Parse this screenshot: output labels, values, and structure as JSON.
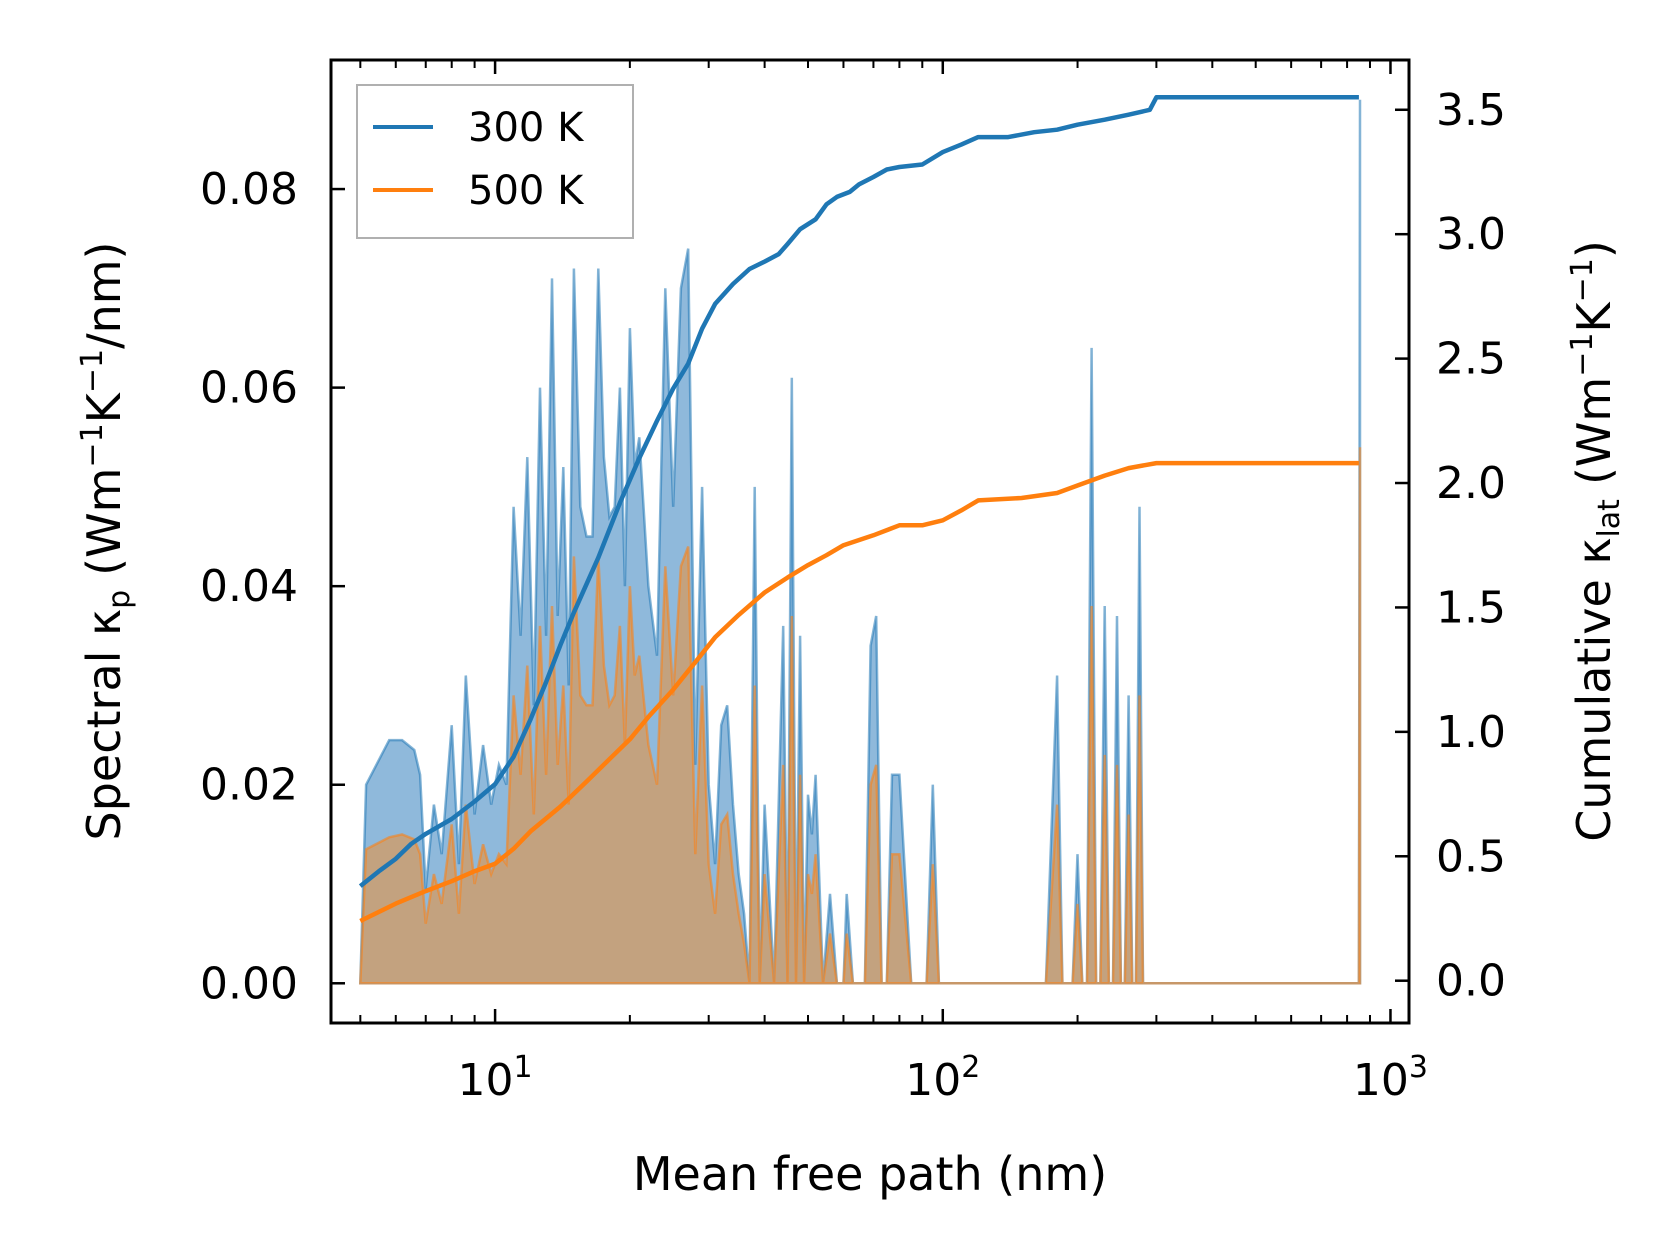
{
  "chart_data": {
    "type": "line",
    "title": "",
    "xlabel": "Mean free path (nm)",
    "ylabel_left": {
      "main": "Spectral κ",
      "sub": "p",
      "unit_prefix": "(Wm",
      "exp1": "−1",
      "mid": "K",
      "exp2": "−1",
      "unit_suffix": "/nm)"
    },
    "ylabel_right": {
      "main": "Cumulative κ",
      "sub": "lat",
      "unit_prefix": "(Wm",
      "exp1": "−1",
      "mid": "K",
      "exp2": "−1",
      "unit_suffix": ")"
    },
    "xscale": "log",
    "xlim": [
      4.3,
      1100
    ],
    "ylim_left": [
      -0.004,
      0.093
    ],
    "ylim_right": [
      -0.17,
      3.7
    ],
    "x_ticks": [
      {
        "base": "10",
        "exp": "1",
        "value": 10
      },
      {
        "base": "10",
        "exp": "2",
        "value": 100
      },
      {
        "base": "10",
        "exp": "3",
        "value": 1000
      }
    ],
    "y_left_ticks": [
      "0.00",
      "0.02",
      "0.04",
      "0.06",
      "0.08"
    ],
    "y_left_tick_values": [
      0,
      0.02,
      0.04,
      0.06,
      0.08
    ],
    "y_right_ticks": [
      "0.0",
      "0.5",
      "1.0",
      "1.5",
      "2.0",
      "2.5",
      "3.0",
      "3.5"
    ],
    "y_right_tick_values": [
      0,
      0.5,
      1.0,
      1.5,
      2.0,
      2.5,
      3.0,
      3.5
    ],
    "legend": {
      "placement": "top-left",
      "entries": [
        "300 K",
        "500 K"
      ]
    },
    "colors": {
      "300K": "#1f77b4",
      "500K": "#ff7f0e",
      "fill_300K": "#8fb9db",
      "fill_500K": "#c6a07a"
    },
    "series": [
      {
        "name": "300 K",
        "axis": "right",
        "kind": "cumulative",
        "x": [
          5,
          5.5,
          6,
          6.5,
          7,
          8,
          9,
          10,
          11,
          12,
          13,
          14,
          15,
          17,
          19,
          21,
          23,
          25,
          27,
          29,
          31,
          34,
          37,
          40,
          43,
          45,
          48,
          52,
          55,
          58,
          62,
          65,
          70,
          75,
          80,
          90,
          100,
          110,
          120,
          140,
          160,
          180,
          200,
          230,
          260,
          290,
          300,
          320,
          400,
          600,
          820,
          850
        ],
        "values": [
          0.38,
          0.44,
          0.49,
          0.55,
          0.59,
          0.65,
          0.72,
          0.79,
          0.9,
          1.05,
          1.2,
          1.35,
          1.48,
          1.7,
          1.92,
          2.1,
          2.25,
          2.38,
          2.48,
          2.62,
          2.72,
          2.8,
          2.86,
          2.89,
          2.92,
          2.96,
          3.02,
          3.06,
          3.12,
          3.15,
          3.17,
          3.2,
          3.23,
          3.26,
          3.27,
          3.28,
          3.33,
          3.36,
          3.39,
          3.39,
          3.41,
          3.42,
          3.44,
          3.46,
          3.48,
          3.5,
          3.55,
          3.55,
          3.55,
          3.55,
          3.55,
          3.55
        ]
      },
      {
        "name": "500 K",
        "axis": "right",
        "kind": "cumulative",
        "x": [
          5,
          6,
          7,
          8,
          9,
          10,
          11,
          12,
          14,
          16,
          18,
          20,
          22,
          25,
          28,
          31,
          35,
          40,
          45,
          50,
          55,
          60,
          70,
          80,
          90,
          100,
          110,
          120,
          150,
          180,
          200,
          230,
          260,
          300,
          320,
          400,
          600,
          850
        ],
        "values": [
          0.24,
          0.31,
          0.36,
          0.4,
          0.44,
          0.47,
          0.53,
          0.6,
          0.7,
          0.8,
          0.89,
          0.97,
          1.06,
          1.17,
          1.28,
          1.38,
          1.47,
          1.56,
          1.62,
          1.67,
          1.71,
          1.75,
          1.79,
          1.83,
          1.83,
          1.85,
          1.89,
          1.93,
          1.94,
          1.96,
          1.99,
          2.03,
          2.06,
          2.08,
          2.08,
          2.08,
          2.08,
          2.08
        ]
      },
      {
        "name": "300 K spectral",
        "axis": "left",
        "kind": "spectral-fill",
        "x": [
          5,
          5.15,
          5.8,
          6.2,
          6.6,
          6.8,
          7,
          7.3,
          7.6,
          8,
          8.3,
          8.6,
          9,
          9.4,
          9.8,
          10.2,
          10.6,
          11,
          11.4,
          11.8,
          12.2,
          12.6,
          13,
          13.4,
          13.8,
          14.2,
          14.6,
          15,
          15.5,
          16,
          16.5,
          17,
          17.5,
          18,
          18.5,
          19,
          19.5,
          20,
          20.5,
          21,
          22,
          23,
          24,
          25,
          26,
          27,
          28,
          29,
          30,
          31,
          32,
          33,
          34,
          35,
          36,
          37,
          38,
          39,
          40,
          42,
          44,
          45,
          46,
          47,
          48,
          49,
          50,
          51,
          52,
          54,
          56,
          58,
          59,
          60,
          61,
          63,
          65,
          67,
          69,
          71,
          73,
          75,
          77,
          80,
          85,
          89,
          92,
          95,
          98,
          100,
          103,
          106,
          110,
          114,
          118,
          122,
          130,
          140,
          145,
          150,
          155,
          170,
          180,
          185,
          190,
          195,
          200,
          205,
          210,
          215,
          220,
          225,
          230,
          235,
          240,
          245,
          250,
          255,
          260,
          265,
          270,
          275,
          280,
          285,
          290,
          295,
          300,
          305,
          310,
          315,
          320,
          330,
          400,
          600,
          840,
          850,
          855
        ],
        "values": [
          0.0,
          0.02,
          0.0245,
          0.0245,
          0.0235,
          0.021,
          0.0095,
          0.018,
          0.013,
          0.026,
          0.012,
          0.031,
          0.017,
          0.024,
          0.018,
          0.022,
          0.02,
          0.048,
          0.035,
          0.053,
          0.028,
          0.06,
          0.035,
          0.071,
          0.037,
          0.052,
          0.03,
          0.072,
          0.048,
          0.045,
          0.045,
          0.072,
          0.053,
          0.047,
          0.048,
          0.06,
          0.04,
          0.066,
          0.052,
          0.055,
          0.04,
          0.033,
          0.07,
          0.048,
          0.07,
          0.074,
          0.022,
          0.05,
          0.02,
          0.012,
          0.026,
          0.028,
          0.018,
          0.011,
          0.007,
          0.0,
          0.05,
          0.0,
          0.018,
          0.0,
          0.036,
          0.0,
          0.061,
          0.0,
          0.035,
          0.0,
          0.019,
          0.015,
          0.021,
          0.0,
          0.009,
          0.0,
          0.0,
          0.0,
          0.009,
          0.0,
          0.0,
          0.0,
          0.034,
          0.037,
          0.0,
          0.0,
          0.021,
          0.021,
          0.0,
          0.0,
          0.0,
          0.02,
          0.0,
          0.0,
          0.0,
          0.0,
          0.0,
          0.0,
          0.0,
          0.0,
          0.0,
          0.0,
          0.0,
          0.0,
          0.0,
          0.0,
          0.031,
          0.0,
          0.0,
          0.0,
          0.013,
          0.0,
          0.0,
          0.064,
          0.0,
          0.0,
          0.038,
          0.0,
          0.0,
          0.037,
          0.0,
          0.0,
          0.029,
          0.0,
          0.0,
          0.048,
          0.0,
          0.0,
          0.0,
          0.0,
          0.0,
          0.0,
          0.0,
          0.0,
          0.0,
          0.0,
          0.0,
          0.0,
          0.0,
          0.0,
          0.089
        ]
      },
      {
        "name": "500 K spectral",
        "axis": "left",
        "kind": "spectral-fill",
        "x": [
          5,
          5.15,
          5.8,
          6.2,
          6.6,
          6.8,
          7,
          7.3,
          7.6,
          8,
          8.3,
          8.6,
          9,
          9.4,
          9.8,
          10.2,
          10.6,
          11,
          11.4,
          11.8,
          12.2,
          12.6,
          13,
          13.4,
          13.8,
          14.2,
          14.6,
          15,
          15.5,
          16,
          16.5,
          17,
          17.5,
          18,
          18.5,
          19,
          19.5,
          20,
          20.5,
          21,
          22,
          23,
          24,
          25,
          26,
          27,
          28,
          29,
          30,
          31,
          32,
          33,
          34,
          35,
          36,
          37,
          38,
          39,
          40,
          42,
          44,
          45,
          46,
          47,
          48,
          49,
          50,
          51,
          52,
          54,
          56,
          58,
          59,
          60,
          61,
          63,
          65,
          67,
          69,
          71,
          73,
          75,
          77,
          80,
          85,
          89,
          92,
          95,
          98,
          100,
          103,
          106,
          110,
          114,
          118,
          122,
          130,
          140,
          145,
          150,
          155,
          170,
          180,
          185,
          190,
          195,
          200,
          205,
          210,
          215,
          220,
          225,
          230,
          235,
          240,
          245,
          250,
          255,
          260,
          265,
          270,
          275,
          280,
          285,
          290,
          295,
          300,
          305,
          310,
          315,
          320,
          330,
          400,
          600,
          840,
          850,
          855
        ],
        "values": [
          0.0,
          0.0135,
          0.0147,
          0.015,
          0.0145,
          0.013,
          0.006,
          0.011,
          0.008,
          0.016,
          0.007,
          0.018,
          0.01,
          0.014,
          0.011,
          0.013,
          0.012,
          0.029,
          0.021,
          0.032,
          0.017,
          0.036,
          0.021,
          0.038,
          0.022,
          0.03,
          0.018,
          0.043,
          0.029,
          0.028,
          0.028,
          0.043,
          0.032,
          0.028,
          0.029,
          0.036,
          0.024,
          0.04,
          0.031,
          0.033,
          0.024,
          0.02,
          0.042,
          0.029,
          0.042,
          0.044,
          0.013,
          0.03,
          0.012,
          0.007,
          0.016,
          0.017,
          0.011,
          0.007,
          0.004,
          0.0,
          0.03,
          0.0,
          0.011,
          0.0,
          0.022,
          0.0,
          0.037,
          0.0,
          0.021,
          0.0,
          0.011,
          0.009,
          0.013,
          0.0,
          0.005,
          0.0,
          0.0,
          0.0,
          0.005,
          0.0,
          0.0,
          0.0,
          0.02,
          0.022,
          0.0,
          0.0,
          0.013,
          0.013,
          0.0,
          0.0,
          0.0,
          0.012,
          0.0,
          0.0,
          0.0,
          0.0,
          0.0,
          0.0,
          0.0,
          0.0,
          0.0,
          0.0,
          0.0,
          0.0,
          0.0,
          0.0,
          0.018,
          0.0,
          0.0,
          0.0,
          0.008,
          0.0,
          0.0,
          0.038,
          0.0,
          0.0,
          0.023,
          0.0,
          0.0,
          0.022,
          0.0,
          0.0,
          0.017,
          0.0,
          0.0,
          0.029,
          0.0,
          0.0,
          0.0,
          0.0,
          0.0,
          0.0,
          0.0,
          0.0,
          0.0,
          0.0,
          0.0,
          0.0,
          0.0,
          0.0,
          0.054
        ]
      }
    ]
  }
}
